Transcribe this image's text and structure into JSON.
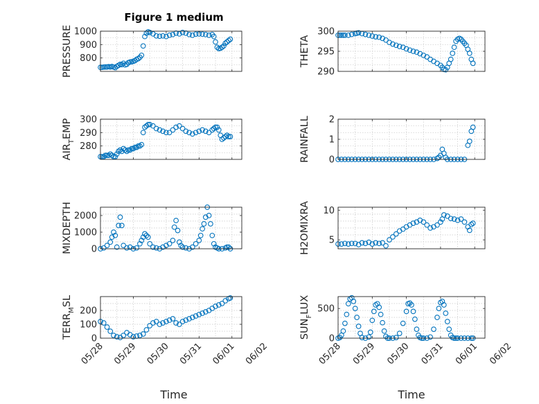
{
  "figure": {
    "title": "Figure 1 medium"
  },
  "colors": {
    "series": "#0072BD"
  },
  "chart_data": [
    {
      "type": "scatter",
      "ylabel": "PRESSURE",
      "ylim": [
        700,
        1000
      ],
      "yticks": [
        "800",
        "900",
        "1000"
      ],
      "ytick_values": [
        800,
        900,
        1000
      ],
      "x": [
        0.0,
        0.05,
        0.1,
        0.15,
        0.2,
        0.25,
        0.3,
        0.35,
        0.4,
        0.45,
        0.5,
        0.55,
        0.6,
        0.65,
        0.7,
        0.75,
        0.8,
        0.85,
        0.9,
        0.95,
        1.0,
        1.05,
        1.1,
        1.15,
        1.2,
        1.25,
        1.3,
        1.35,
        1.4,
        1.45,
        1.5,
        1.6,
        1.7,
        1.8,
        1.9,
        2.0,
        2.1,
        2.2,
        2.3,
        2.4,
        2.5,
        2.6,
        2.7,
        2.8,
        2.9,
        3.0,
        3.1,
        3.2,
        3.3,
        3.4,
        3.45,
        3.5,
        3.55,
        3.6,
        3.65,
        3.7,
        3.75,
        3.8,
        3.85,
        3.9,
        3.95
      ],
      "y": [
        730,
        730,
        732,
        733,
        733,
        735,
        733,
        736,
        732,
        728,
        738,
        745,
        752,
        750,
        760,
        748,
        752,
        765,
        770,
        772,
        775,
        780,
        790,
        795,
        805,
        820,
        890,
        960,
        985,
        995,
        990,
        980,
        965,
        962,
        965,
        960,
        970,
        975,
        985,
        980,
        990,
        985,
        975,
        970,
        978,
        980,
        978,
        975,
        970,
        975,
        960,
        920,
        880,
        870,
        872,
        880,
        890,
        910,
        920,
        930,
        940
      ]
    },
    {
      "type": "scatter",
      "ylabel": "THETA",
      "ylim": [
        290,
        300
      ],
      "yticks": [
        "290",
        "295",
        "300"
      ],
      "ytick_values": [
        290,
        295,
        300
      ],
      "x": [
        0.0,
        0.05,
        0.1,
        0.15,
        0.2,
        0.3,
        0.4,
        0.5,
        0.55,
        0.6,
        0.7,
        0.8,
        0.9,
        1.0,
        1.1,
        1.2,
        1.3,
        1.4,
        1.5,
        1.6,
        1.7,
        1.8,
        1.9,
        2.0,
        2.1,
        2.2,
        2.3,
        2.4,
        2.5,
        2.6,
        2.7,
        2.8,
        2.9,
        3.0,
        3.05,
        3.1,
        3.15,
        3.2,
        3.25,
        3.3,
        3.35,
        3.4,
        3.45,
        3.5,
        3.55,
        3.6,
        3.65,
        3.7,
        3.75,
        3.8,
        3.85,
        3.9,
        3.95
      ],
      "y": [
        299,
        299,
        299,
        299,
        299,
        299,
        299.2,
        299.4,
        299.5,
        299.6,
        299.4,
        299.2,
        299,
        298.8,
        298.6,
        298.5,
        298.2,
        297.8,
        297.2,
        296.8,
        296.5,
        296.2,
        296,
        295.6,
        295.3,
        295,
        294.8,
        294.4,
        294,
        293.6,
        293,
        292.5,
        292,
        291.5,
        291,
        290.5,
        290.4,
        291,
        292,
        293,
        294.5,
        296,
        297.5,
        298,
        298.2,
        298,
        297.5,
        297,
        296.5,
        295.5,
        294.5,
        293,
        292
      ]
    },
    {
      "type": "scatter",
      "ylabel": "AIR",
      "ylabel_sub": "T",
      "ylabel_tail": "EMP",
      "ylim": [
        270,
        300
      ],
      "yticks": [
        "280",
        "290",
        "300"
      ],
      "ytick_values": [
        280,
        290,
        300
      ],
      "x": [
        0.0,
        0.05,
        0.1,
        0.15,
        0.2,
        0.25,
        0.3,
        0.35,
        0.4,
        0.45,
        0.5,
        0.55,
        0.6,
        0.65,
        0.7,
        0.75,
        0.8,
        0.85,
        0.9,
        0.95,
        1.0,
        1.05,
        1.1,
        1.15,
        1.2,
        1.25,
        1.3,
        1.35,
        1.4,
        1.45,
        1.5,
        1.6,
        1.7,
        1.8,
        1.9,
        2.0,
        2.1,
        2.2,
        2.3,
        2.4,
        2.5,
        2.6,
        2.7,
        2.8,
        2.9,
        3.0,
        3.1,
        3.2,
        3.3,
        3.4,
        3.45,
        3.5,
        3.55,
        3.6,
        3.65,
        3.7,
        3.75,
        3.8,
        3.85,
        3.9,
        3.95
      ],
      "y": [
        272,
        272,
        272,
        273,
        273,
        273,
        274,
        273,
        272,
        272,
        274,
        276,
        277,
        276,
        278,
        277,
        276,
        277,
        277,
        278,
        278,
        279,
        279,
        280,
        280,
        281,
        290,
        294,
        295,
        296,
        296,
        295,
        293,
        292,
        291,
        290,
        290,
        292,
        294,
        295,
        293,
        291,
        290,
        289,
        290,
        291,
        292,
        291,
        290,
        292,
        293,
        294,
        294,
        292,
        288,
        285,
        286,
        287,
        288,
        287,
        287
      ]
    },
    {
      "type": "scatter",
      "ylabel": "RAINFALL",
      "ylim": [
        0,
        2
      ],
      "yticks": [
        "0",
        "1",
        "2"
      ],
      "ytick_values": [
        0,
        1,
        2
      ],
      "x": [
        0.0,
        0.1,
        0.2,
        0.3,
        0.4,
        0.5,
        0.6,
        0.7,
        0.8,
        0.9,
        1.0,
        1.1,
        1.2,
        1.3,
        1.4,
        1.5,
        1.6,
        1.7,
        1.8,
        1.9,
        2.0,
        2.1,
        2.2,
        2.3,
        2.4,
        2.5,
        2.6,
        2.7,
        2.8,
        2.9,
        2.95,
        3.0,
        3.05,
        3.1,
        3.15,
        3.2,
        3.3,
        3.4,
        3.5,
        3.6,
        3.7,
        3.8,
        3.85,
        3.9,
        3.95
      ],
      "y": [
        0,
        0,
        0,
        0,
        0,
        0,
        0,
        0,
        0,
        0,
        0,
        0,
        0,
        0,
        0,
        0,
        0,
        0,
        0,
        0,
        0,
        0,
        0,
        0,
        0,
        0,
        0,
        0,
        0,
        0.05,
        0.1,
        0.2,
        0.5,
        0.3,
        0.1,
        0,
        0,
        0,
        0,
        0,
        0,
        0.7,
        0.9,
        1.4,
        1.6
      ]
    },
    {
      "type": "scatter",
      "ylabel": "MIXDEPTH",
      "ylim": [
        0,
        2500
      ],
      "yticks": [
        "0",
        "1000",
        "2000"
      ],
      "ytick_values": [
        0,
        1000,
        2000
      ],
      "x": [
        0.0,
        0.1,
        0.2,
        0.3,
        0.35,
        0.4,
        0.45,
        0.5,
        0.55,
        0.6,
        0.65,
        0.7,
        0.8,
        0.9,
        1.0,
        1.1,
        1.2,
        1.25,
        1.3,
        1.35,
        1.4,
        1.45,
        1.5,
        1.6,
        1.7,
        1.8,
        1.9,
        2.0,
        2.1,
        2.2,
        2.25,
        2.3,
        2.35,
        2.4,
        2.45,
        2.5,
        2.6,
        2.7,
        2.8,
        2.9,
        3.0,
        3.05,
        3.1,
        3.15,
        3.2,
        3.25,
        3.3,
        3.35,
        3.4,
        3.45,
        3.5,
        3.55,
        3.6,
        3.7,
        3.8,
        3.85,
        3.9,
        3.95
      ],
      "y": [
        0,
        50,
        200,
        400,
        700,
        1000,
        800,
        100,
        1400,
        1900,
        1400,
        200,
        50,
        100,
        0,
        50,
        300,
        500,
        700,
        900,
        800,
        700,
        300,
        100,
        50,
        0,
        100,
        200,
        300,
        500,
        1300,
        1700,
        1100,
        400,
        200,
        100,
        50,
        0,
        100,
        300,
        500,
        800,
        1200,
        1500,
        1900,
        2500,
        2000,
        1500,
        800,
        300,
        100,
        50,
        0,
        0,
        50,
        100,
        100,
        0
      ]
    },
    {
      "type": "scatter",
      "ylabel": "H2OMIXRA",
      "ylim": [
        3.5,
        10.5
      ],
      "yticks": [
        "5",
        "10"
      ],
      "ytick_values": [
        5,
        10
      ],
      "x": [
        0.0,
        0.1,
        0.2,
        0.3,
        0.4,
        0.5,
        0.6,
        0.7,
        0.8,
        0.9,
        1.0,
        1.1,
        1.2,
        1.3,
        1.4,
        1.5,
        1.6,
        1.7,
        1.8,
        1.9,
        2.0,
        2.1,
        2.2,
        2.3,
        2.4,
        2.5,
        2.6,
        2.7,
        2.8,
        2.9,
        3.0,
        3.05,
        3.1,
        3.2,
        3.3,
        3.4,
        3.5,
        3.6,
        3.7,
        3.8,
        3.85,
        3.9,
        3.95
      ],
      "y": [
        4.3,
        4.3,
        4.4,
        4.3,
        4.4,
        4.4,
        4.2,
        4.5,
        4.4,
        4.6,
        4.3,
        4.5,
        4.4,
        4.5,
        4.0,
        5.0,
        5.5,
        6.0,
        6.5,
        6.8,
        7.2,
        7.5,
        7.8,
        8.0,
        8.3,
        8.0,
        7.5,
        7.0,
        7.2,
        7.5,
        8.0,
        8.5,
        9.2,
        9.0,
        8.6,
        8.5,
        8.3,
        8.5,
        8.0,
        7.2,
        6.6,
        7.6,
        7.8
      ]
    },
    {
      "type": "scatter",
      "ylabel": "TERR",
      "ylabel_sub": "M",
      "ylabel_tail": "SL",
      "ylim": [
        0,
        300
      ],
      "yticks": [
        "0",
        "100",
        "200"
      ],
      "ytick_values": [
        0,
        100,
        200
      ],
      "x": [
        0.0,
        0.1,
        0.2,
        0.3,
        0.4,
        0.5,
        0.6,
        0.7,
        0.8,
        0.9,
        1.0,
        1.1,
        1.2,
        1.3,
        1.4,
        1.5,
        1.6,
        1.7,
        1.8,
        1.9,
        2.0,
        2.1,
        2.2,
        2.3,
        2.4,
        2.5,
        2.6,
        2.7,
        2.8,
        2.9,
        3.0,
        3.1,
        3.2,
        3.3,
        3.4,
        3.5,
        3.6,
        3.7,
        3.8,
        3.9,
        3.95
      ],
      "y": [
        120,
        110,
        80,
        50,
        20,
        10,
        5,
        20,
        40,
        25,
        10,
        15,
        20,
        30,
        60,
        90,
        110,
        120,
        100,
        110,
        120,
        130,
        140,
        110,
        100,
        120,
        130,
        140,
        150,
        160,
        170,
        180,
        190,
        200,
        215,
        230,
        240,
        250,
        270,
        285,
        290
      ]
    },
    {
      "type": "scatter",
      "ylabel": "SUN",
      "ylabel_sub": "F",
      "ylabel_tail": "LUX",
      "ylim": [
        0,
        700
      ],
      "yticks": [
        "0",
        "500"
      ],
      "ytick_values": [
        0,
        500
      ],
      "x": [
        0.0,
        0.05,
        0.1,
        0.15,
        0.2,
        0.25,
        0.3,
        0.35,
        0.4,
        0.45,
        0.5,
        0.55,
        0.6,
        0.65,
        0.7,
        0.8,
        0.9,
        0.95,
        1.0,
        1.05,
        1.1,
        1.15,
        1.2,
        1.25,
        1.3,
        1.35,
        1.4,
        1.45,
        1.5,
        1.6,
        1.7,
        1.8,
        1.9,
        2.0,
        2.05,
        2.1,
        2.15,
        2.2,
        2.25,
        2.3,
        2.35,
        2.4,
        2.45,
        2.5,
        2.6,
        2.7,
        2.8,
        2.9,
        2.95,
        3.0,
        3.05,
        3.1,
        3.15,
        3.2,
        3.25,
        3.3,
        3.35,
        3.4,
        3.45,
        3.5,
        3.6,
        3.7,
        3.8,
        3.9,
        3.95
      ],
      "y": [
        0,
        10,
        50,
        120,
        250,
        400,
        580,
        660,
        680,
        620,
        500,
        350,
        200,
        80,
        10,
        0,
        20,
        100,
        300,
        450,
        560,
        580,
        520,
        400,
        260,
        120,
        30,
        0,
        0,
        0,
        10,
        80,
        250,
        450,
        580,
        590,
        560,
        450,
        320,
        150,
        50,
        10,
        0,
        0,
        0,
        20,
        150,
        350,
        500,
        600,
        620,
        560,
        420,
        280,
        150,
        50,
        10,
        0,
        0,
        0,
        0,
        0,
        0,
        0,
        0
      ]
    }
  ],
  "shared_x": {
    "label": "Time",
    "xlim": [
      0,
      4.3
    ],
    "ticks": [
      "05/28",
      "05/29",
      "05/30",
      "05/31",
      "06/01",
      "06/02"
    ],
    "tick_values": [
      0,
      1,
      2,
      3,
      4,
      5
    ]
  }
}
